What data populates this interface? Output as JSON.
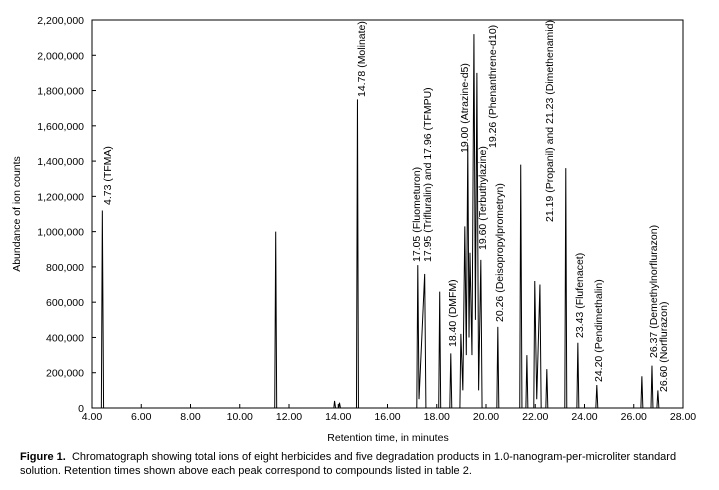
{
  "chart_data": {
    "type": "line",
    "x_label": "Retention time, in minutes",
    "y_label": "Abundance of ion counts",
    "color": "#000000",
    "xlim": [
      4,
      28
    ],
    "ylim": [
      0,
      2200000
    ],
    "xticks": [
      {
        "value": 4,
        "label": "4.00"
      },
      {
        "value": 6,
        "label": "6.00"
      },
      {
        "value": 8,
        "label": "8.00"
      },
      {
        "value": 10,
        "label": "10.00"
      },
      {
        "value": 12,
        "label": "12.00"
      },
      {
        "value": 14,
        "label": "14.00"
      },
      {
        "value": 16,
        "label": "16.00"
      },
      {
        "value": 18,
        "label": "18.00"
      },
      {
        "value": 20,
        "label": "20.00"
      },
      {
        "value": 22,
        "label": "22.00"
      },
      {
        "value": 24,
        "label": "24.00"
      },
      {
        "value": 26,
        "label": "26.00"
      },
      {
        "value": 28,
        "label": "28.00"
      }
    ],
    "yticks": [
      0,
      {
        "value": 200000,
        "label": "200,000"
      },
      {
        "value": 400000,
        "label": "400,000"
      },
      {
        "value": 600000,
        "label": "600,000"
      },
      {
        "value": 800000,
        "label": "800,000"
      },
      {
        "value": 1000000,
        "label": "1,000,000"
      },
      {
        "value": 1200000,
        "label": "1,200,000"
      },
      {
        "value": 1400000,
        "label": "1,400,000"
      },
      {
        "value": 1600000,
        "label": "1,600,000"
      },
      {
        "value": 1800000,
        "label": "1,800,000"
      },
      {
        "value": 2000000,
        "label": "2,000,000"
      },
      {
        "value": 2200000,
        "label": "2,200,000"
      }
    ],
    "x": [
      4.0,
      4.38,
      4.42,
      4.47,
      11.42,
      11.46,
      11.5,
      13.82,
      13.85,
      13.89,
      14.02,
      14.05,
      14.09,
      14.74,
      14.78,
      14.82,
      17.19,
      17.23,
      17.28,
      17.51,
      17.56,
      18.08,
      18.12,
      18.16,
      18.53,
      18.57,
      18.61,
      18.94,
      18.98,
      19.06,
      19.14,
      19.2,
      19.26,
      19.31,
      19.35,
      19.43,
      19.51,
      19.57,
      19.63,
      19.7,
      19.79,
      19.84,
      20.44,
      20.48,
      20.52,
      21.37,
      21.41,
      21.46,
      21.62,
      21.66,
      21.7,
      21.94,
      21.98,
      22.06,
      22.19,
      22.24,
      22.43,
      22.47,
      22.51,
      23.2,
      23.24,
      23.28,
      23.69,
      23.73,
      23.77,
      24.46,
      24.5,
      24.54,
      26.29,
      26.33,
      26.37,
      26.7,
      26.74,
      26.78,
      26.94,
      26.98,
      27.02,
      28.0
    ],
    "values": [
      0,
      0,
      1120000,
      0,
      0,
      1000000,
      0,
      0,
      40000,
      0,
      0,
      30000,
      0,
      0,
      1750000,
      0,
      0,
      810000,
      50000,
      760000,
      0,
      0,
      660000,
      0,
      0,
      310000,
      0,
      0,
      420000,
      100000,
      1030000,
      300000,
      1490000,
      400000,
      880000,
      300000,
      2120000,
      500000,
      1900000,
      100000,
      840000,
      0,
      0,
      460000,
      0,
      0,
      1380000,
      0,
      0,
      300000,
      0,
      0,
      720000,
      50000,
      700000,
      0,
      0,
      220000,
      0,
      0,
      1360000,
      0,
      0,
      370000,
      0,
      0,
      130000,
      0,
      0,
      180000,
      0,
      0,
      240000,
      0,
      0,
      100000,
      0,
      0
    ],
    "annotations": [
      "4.73 (TFMA)",
      "14.78 (Molinate)",
      "17.05 (Fluometuron)",
      "17.95 (Trifluralin) and 17.96 (TFMPU)",
      "18.40 (DMFM)",
      "19.00 (Atrazine-d5)",
      "19.26 (Phenanthrene-d10)",
      "19.60 (Terbuthylazine)",
      "20.26 (Deisopropylprometryn)",
      "21.19 (Propanil) and 21.23 (Dimethenamid)",
      "23.43 (Flufenacet)",
      "24.20 (Pendimethalin)",
      "26.37 (Demethylnorflurazon)",
      "26.60 (Norflurazon)"
    ],
    "caption": {
      "label": "Figure 1.",
      "text": "Chromatograph showing total ions of eight herbicides and five degradation products in 1.0-nanogram-per-microliter standard solution.  Retention times shown above each peak correspond to compounds listed in table 2."
    }
  }
}
